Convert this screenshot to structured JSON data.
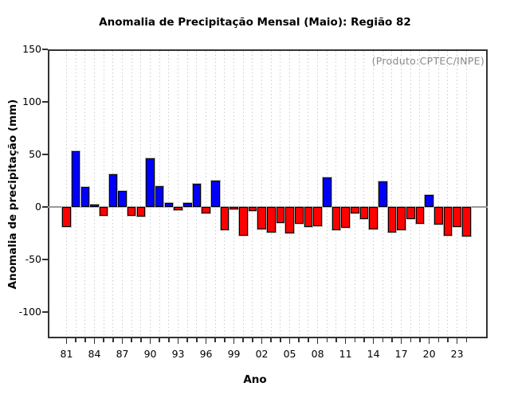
{
  "title": "Anomalia de Precipitação Mensal (Maio): Região 82",
  "watermark": "(Produto:CPTEC/INPE)",
  "chart_data": {
    "type": "bar",
    "title": "Anomalia de Precipitação Mensal (Maio): Região 82",
    "xlabel": "Ano",
    "ylabel": "Anomalia de precipitação (mm)",
    "x": [
      1981,
      1982,
      1983,
      1984,
      1985,
      1986,
      1987,
      1988,
      1989,
      1990,
      1991,
      1992,
      1993,
      1994,
      1995,
      1996,
      1997,
      1998,
      1999,
      2000,
      2001,
      2002,
      2003,
      2004,
      2005,
      2006,
      2007,
      2008,
      2009,
      2010,
      2011,
      2012,
      2013,
      2014,
      2015,
      2016,
      2017,
      2018,
      2019,
      2020,
      2021,
      2022,
      2023,
      2024
    ],
    "values": [
      -19,
      53,
      19,
      2,
      -8,
      31,
      15,
      -8,
      -9,
      46,
      20,
      4,
      -3,
      4,
      22,
      -6,
      25,
      -22,
      -2,
      -27,
      -4,
      -21,
      -24,
      -15,
      -25,
      -16,
      -19,
      -18,
      28,
      -22,
      -20,
      -6,
      -11,
      -21,
      24,
      -24,
      -22,
      -11,
      -16,
      11,
      -17,
      -27,
      -19,
      -28
    ],
    "x_tick_labels": [
      "81",
      "84",
      "87",
      "90",
      "93",
      "96",
      "99",
      "02",
      "05",
      "08",
      "11",
      "14",
      "17",
      "20",
      "23"
    ],
    "y_ticks": [
      150,
      100,
      50,
      0,
      -50,
      -100
    ],
    "ylim": [
      -125,
      150
    ],
    "grid": "vertical-dashed-per-year",
    "legend": "none",
    "annotation": "(Produto:CPTEC/INPE)",
    "colors": {
      "positive_bar": "#0000ff",
      "negative_bar": "#ff0000",
      "bar_border": "#000000",
      "bar_shadow": "#b4b4b4",
      "zero_line": "#999999",
      "gridline": "#cccccc",
      "axis": "#333333",
      "annotation_text": "#8a8a8a"
    }
  }
}
